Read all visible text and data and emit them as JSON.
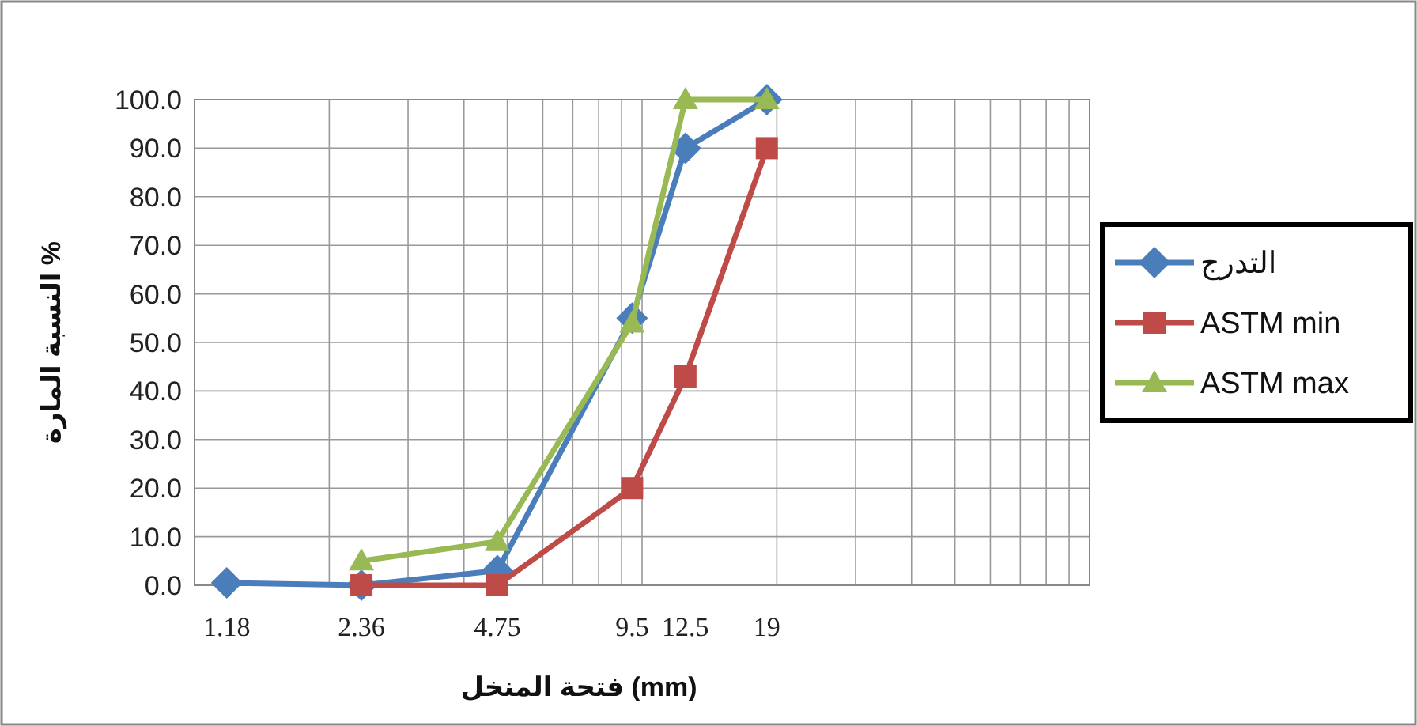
{
  "chart_data": {
    "type": "line",
    "xlabel": "فتحة المنخل (mm)",
    "ylabel": "النسبة المارة %",
    "log": "x",
    "xlim": [
      1,
      100
    ],
    "ylim": [
      0,
      100
    ],
    "xticks": [
      1.18,
      2.36,
      4.75,
      9.5,
      12.5,
      19
    ],
    "yticks": [
      {
        "value": 0,
        "label": "0.0"
      },
      {
        "value": 10,
        "label": "10.0"
      },
      {
        "value": 20,
        "label": "20.0"
      },
      {
        "value": 30,
        "label": "30.0"
      },
      {
        "value": 40,
        "label": "40.0"
      },
      {
        "value": 50,
        "label": "50.0"
      },
      {
        "value": 60,
        "label": "60.0"
      },
      {
        "value": 70,
        "label": "70.0"
      },
      {
        "value": 80,
        "label": "80.0"
      },
      {
        "value": 90,
        "label": "90.0"
      },
      {
        "value": 100,
        "label": "100.0"
      }
    ],
    "grid": true,
    "legend": "right",
    "series": [
      {
        "name": "التدرج",
        "color": "#4a7ebb",
        "marker": "diamond",
        "x": [
          1.18,
          2.36,
          4.75,
          9.5,
          12.5,
          19
        ],
        "values": [
          0.5,
          0,
          3,
          55,
          90,
          100
        ]
      },
      {
        "name": "ASTM min",
        "color": "#be4b48",
        "marker": "square",
        "x": [
          2.36,
          4.75,
          9.5,
          12.5,
          19
        ],
        "values": [
          0,
          0,
          20,
          43,
          90
        ]
      },
      {
        "name": "ASTM max",
        "color": "#98b954",
        "marker": "triangle",
        "x": [
          2.36,
          4.75,
          9.5,
          12.5,
          19
        ],
        "values": [
          5,
          9,
          54,
          100,
          100
        ]
      }
    ]
  }
}
